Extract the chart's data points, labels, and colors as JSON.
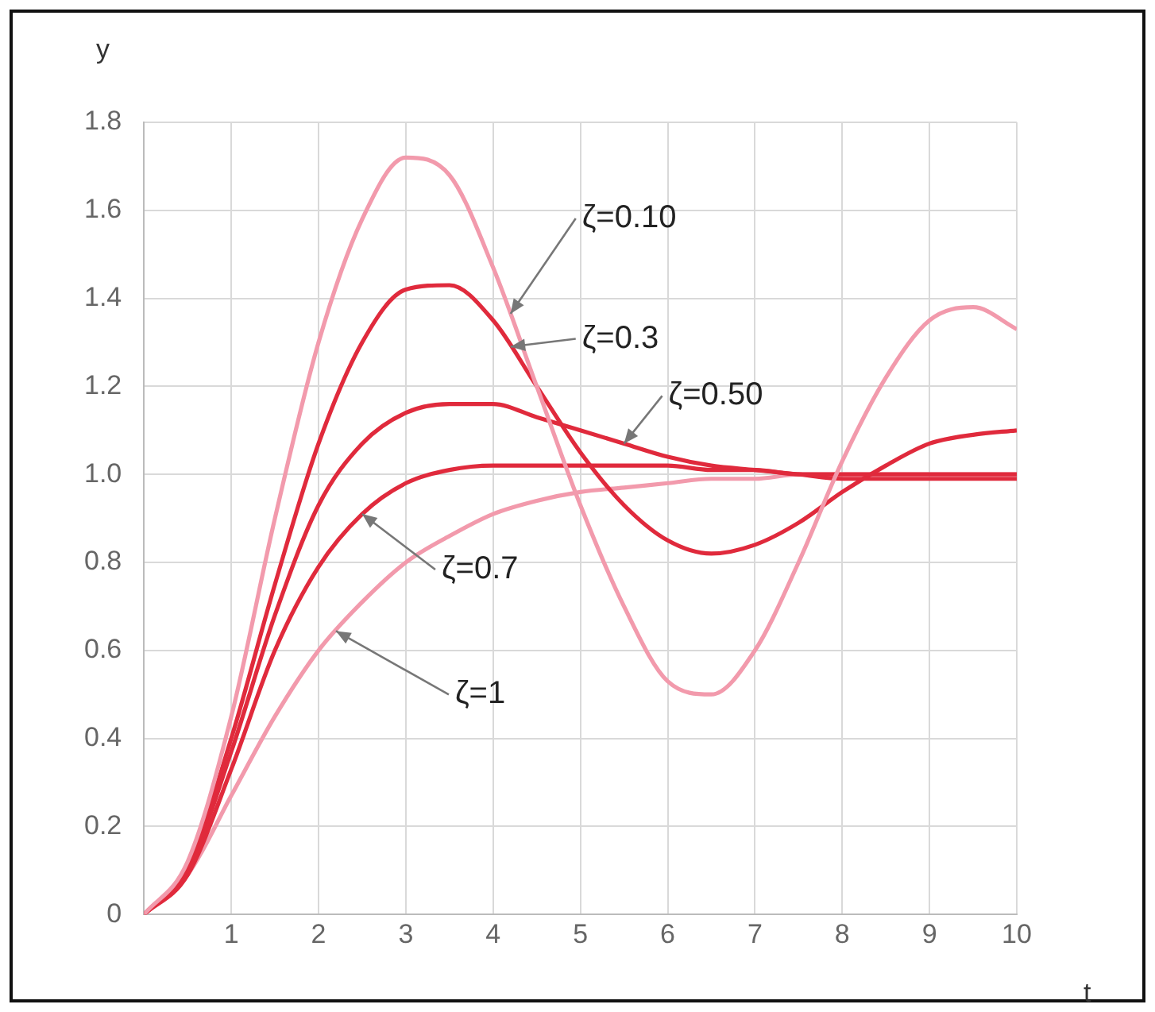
{
  "chart_data": {
    "type": "line",
    "xlabel": "t",
    "ylabel": "y",
    "x": [
      0,
      0.5,
      1,
      1.5,
      2,
      2.5,
      3,
      3.5,
      4,
      4.5,
      5,
      5.5,
      6,
      6.5,
      7,
      7.5,
      8,
      8.5,
      9,
      9.5,
      10
    ],
    "series": [
      {
        "color": "#f29aac",
        "values": [
          0,
          0.12,
          0.45,
          0.9,
          1.3,
          1.58,
          1.72,
          1.68,
          1.47,
          1.2,
          0.93,
          0.7,
          0.53,
          0.5,
          0.6,
          0.8,
          1.03,
          1.22,
          1.35,
          1.38,
          1.33
        ]
      },
      {
        "color": "#e02a3c",
        "values": [
          0,
          0.11,
          0.4,
          0.75,
          1.07,
          1.3,
          1.42,
          1.43,
          1.35,
          1.2,
          1.05,
          0.93,
          0.85,
          0.82,
          0.84,
          0.89,
          0.96,
          1.02,
          1.07,
          1.09,
          1.1
        ]
      },
      {
        "color": "#e02a3c",
        "values": [
          0,
          0.1,
          0.37,
          0.68,
          0.93,
          1.07,
          1.14,
          1.16,
          1.16,
          1.13,
          1.1,
          1.07,
          1.04,
          1.02,
          1.01,
          1.0,
          0.99,
          0.99,
          0.99,
          0.99,
          0.99
        ]
      },
      {
        "color": "#e02a3c",
        "values": [
          0,
          0.09,
          0.33,
          0.6,
          0.79,
          0.91,
          0.98,
          1.01,
          1.02,
          1.02,
          1.02,
          1.02,
          1.02,
          1.01,
          1.01,
          1.0,
          1.0,
          1.0,
          1.0,
          1.0,
          1.0
        ]
      },
      {
        "color": "#f29aac",
        "values": [
          0,
          0.09,
          0.27,
          0.45,
          0.6,
          0.71,
          0.8,
          0.86,
          0.91,
          0.94,
          0.96,
          0.97,
          0.98,
          0.99,
          0.99,
          1.0,
          1.0,
          1.0,
          1.0,
          1.0,
          1.0
        ]
      }
    ],
    "xlim": [
      0,
      10
    ],
    "xticks": [
      {
        "value": 0,
        "label": null
      },
      1,
      2,
      3,
      4,
      5,
      6,
      7,
      8,
      9,
      10
    ],
    "ylim": [
      0,
      1.8
    ],
    "yticks": [
      0,
      0.2,
      0.4,
      0.6,
      0.8,
      {
        "value": 1,
        "label": "1.0"
      },
      1.2,
      1.4,
      1.6,
      1.8
    ],
    "grid": true,
    "legend": false,
    "marker": "none",
    "line_style": "solid",
    "annotations": [
      {
        "text": "ζ=0.10",
        "x": 4.2,
        "y": 1.365
      },
      {
        "text": "ζ=0.3",
        "x": 4.2,
        "y": 1.29
      },
      {
        "text": "ζ=0.50",
        "x": 5.5,
        "y": 1.07
      },
      {
        "text": "ζ=0.7",
        "x": 2.5,
        "y": 0.91
      },
      {
        "text": "ζ=1",
        "x": 2.2,
        "y": 0.644
      }
    ]
  }
}
